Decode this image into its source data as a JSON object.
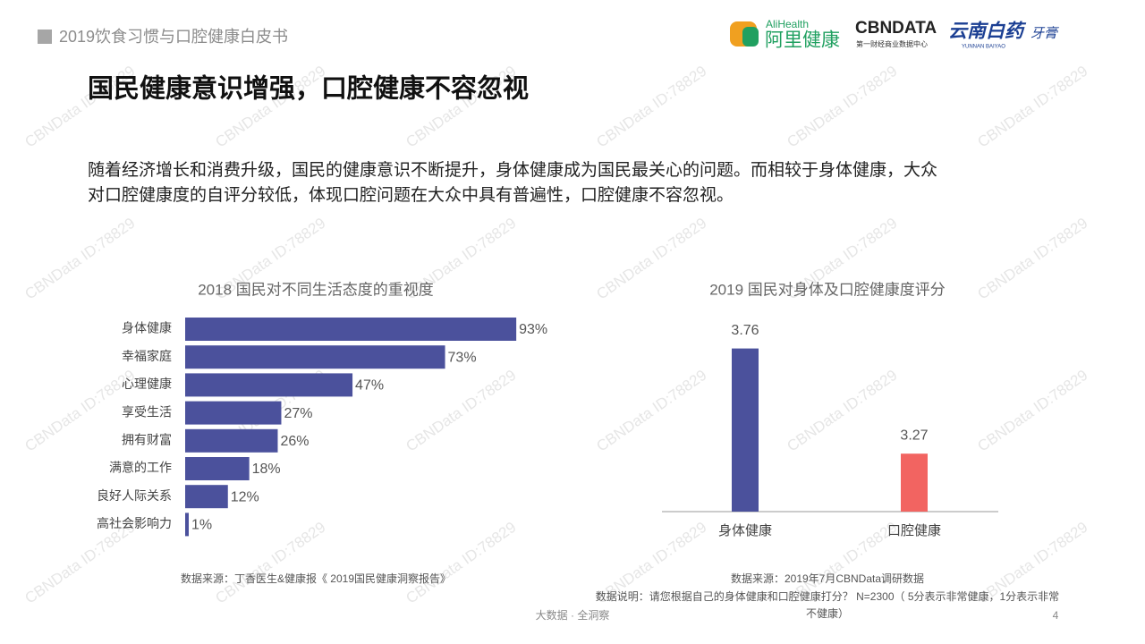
{
  "header": {
    "title": "2019饮食习惯与口腔健康白皮书"
  },
  "logos": {
    "alihealth_en": "AliHealth",
    "alihealth_cn": "阿里健康",
    "cbndata": "CBNDATA",
    "cbndata_sub": "第一财经商业数据中心",
    "baiyao_cn": "云南白药",
    "baiyao_en": "YUNNAN BAIYAO",
    "baiyao_product": "牙膏"
  },
  "watermark": "CBNData ID:78829",
  "title": "国民健康意识增强，口腔健康不容忽视",
  "body": [
    "随着经济增长和消费升级，国民的健康意识不断提升，身体健康成为国民最关心的问题。而相较于身体健康，大众",
    "对口腔健康度的自评分较低，体现口腔问题在大众中具有普遍性，口腔健康不容忽视。"
  ],
  "chart_data": [
    {
      "type": "bar",
      "orientation": "horizontal",
      "title": "2018 国民对不同生活态度的重视度",
      "categories": [
        "身体健康",
        "幸福家庭",
        "心理健康",
        "享受生活",
        "拥有财富",
        "满意的工作",
        "良好人际关系",
        "高社会影响力"
      ],
      "values": [
        93,
        73,
        47,
        27,
        26,
        18,
        12,
        1
      ],
      "value_labels": [
        "93%",
        "73%",
        "47%",
        "27%",
        "26%",
        "18%",
        "12%",
        "1%"
      ],
      "color": "#4b519c",
      "xlim": [
        0,
        100
      ],
      "source": "数据来源：丁香医生&健康报《 2019国民健康洞察报告》"
    },
    {
      "type": "bar",
      "orientation": "vertical",
      "title": "2019 国民对身体及口腔健康度评分",
      "categories": [
        "身体健康",
        "口腔健康"
      ],
      "values": [
        3.76,
        3.27
      ],
      "colors": [
        "#4b519c",
        "#f26461"
      ],
      "ylim": [
        3,
        3.8
      ],
      "source": "数据来源：2019年7月CBNData调研数据",
      "note": "数据说明：请您根据自己的身体健康和口腔健康打分？ N=2300（ 5分表示非常健康，1分表示非常不健康）"
    }
  ],
  "footer": {
    "slogan": "大数据 · 全洞察",
    "page": "4"
  }
}
